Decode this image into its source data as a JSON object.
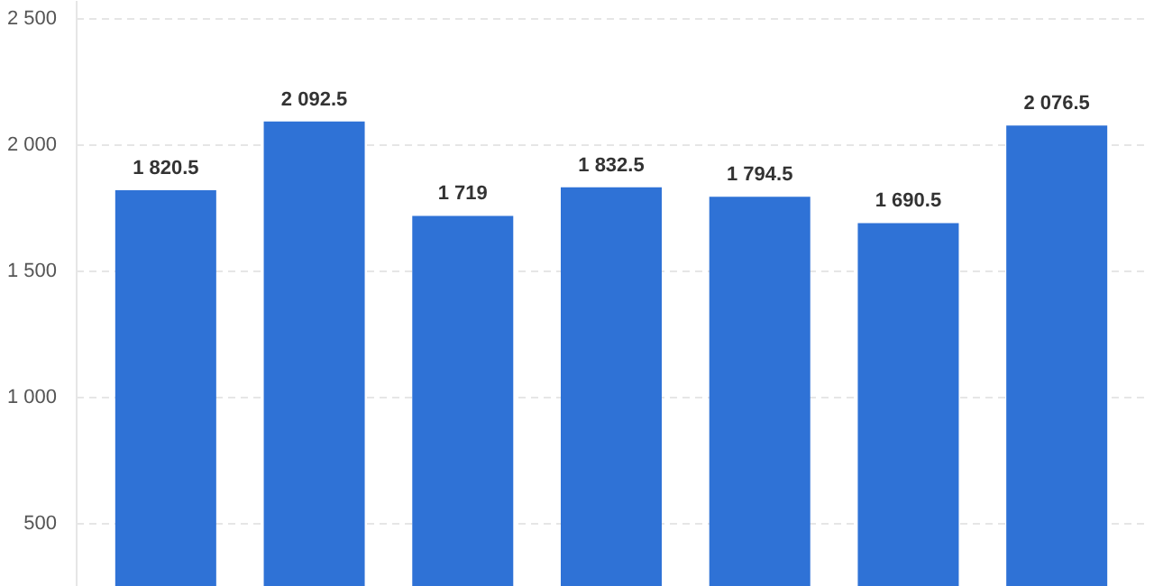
{
  "chart_data": {
    "type": "bar",
    "categories": [
      null,
      null,
      null,
      null,
      null,
      null,
      null
    ],
    "values": [
      1820.5,
      2092.5,
      1719,
      1832.5,
      1794.5,
      1690.5,
      2076.5
    ],
    "value_labels": [
      "1 820.5",
      "2 092.5",
      "1 719",
      "1 832.5",
      "1 794.5",
      "1 690.5",
      "2 076.5"
    ],
    "color": "#2f72d6",
    "ylim": [
      250,
      2570
    ],
    "yticks": [
      {
        "value": 500,
        "label": "500"
      },
      {
        "value": 1000,
        "label": "1 000"
      },
      {
        "value": 1500,
        "label": "1 500"
      },
      {
        "value": 2000,
        "label": "2 000"
      },
      {
        "value": 2500,
        "label": "2 500"
      }
    ],
    "grid": "y",
    "tick_labels": "y"
  }
}
